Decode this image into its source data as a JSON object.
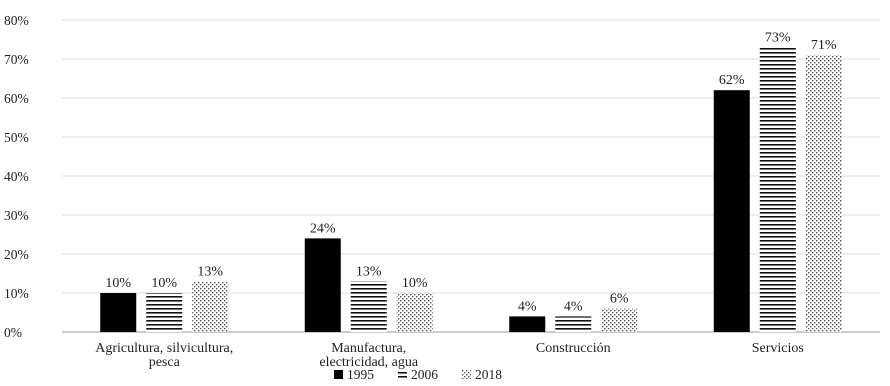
{
  "chart_data": {
    "type": "bar",
    "title": "",
    "xlabel": "",
    "ylabel": "",
    "ylim": [
      0,
      80
    ],
    "y_ticks": [
      "0%",
      "10%",
      "20%",
      "30%",
      "40%",
      "50%",
      "60%",
      "70%",
      "80%"
    ],
    "grid": true,
    "legend_position": "bottom",
    "categories": [
      [
        "Agricultura, silvicultura,",
        "pesca"
      ],
      [
        "Manufactura,",
        "electricidad, agua"
      ],
      [
        "Construcción"
      ],
      [
        "Servicios"
      ]
    ],
    "series": [
      {
        "name": "1995",
        "values": [
          10,
          24,
          4,
          62
        ],
        "labels": [
          "10%",
          "24%",
          "4%",
          "62%"
        ],
        "fill": "solid",
        "color": "#000000"
      },
      {
        "name": "2006",
        "values": [
          10,
          13,
          4,
          73
        ],
        "labels": [
          "10%",
          "13%",
          "4%",
          "73%"
        ],
        "fill": "horizontal-stripes",
        "color": "#000000"
      },
      {
        "name": "2018",
        "values": [
          13,
          10,
          6,
          71
        ],
        "labels": [
          "13%",
          "10%",
          "6%",
          "71%"
        ],
        "fill": "dots",
        "color": "#555555"
      }
    ]
  }
}
